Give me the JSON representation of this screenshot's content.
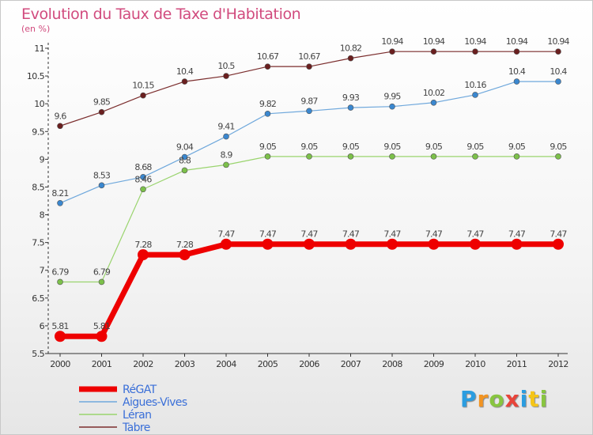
{
  "chart_data": {
    "type": "line",
    "title": "Evolution du Taux de Taxe d'Habitation",
    "subtitle": "(en %)",
    "x": [
      "2000",
      "2001",
      "2002",
      "2003",
      "2004",
      "2005",
      "2006",
      "2007",
      "2008",
      "2009",
      "2010",
      "2011",
      "2012"
    ],
    "ylim": [
      5.5,
      11
    ],
    "yticks": [
      "5.5",
      "6",
      "6.5",
      "7",
      "7.5",
      "8",
      "8.5",
      "9",
      "9.5",
      "10",
      "10.5",
      "11"
    ],
    "grid": false,
    "legend_position": "bottom-left",
    "series": [
      {
        "name": "RéGAT",
        "color": "#ee0000",
        "width": 7,
        "marker": 7,
        "values": [
          5.81,
          5.81,
          7.28,
          7.28,
          7.47,
          7.47,
          7.47,
          7.47,
          7.47,
          7.47,
          7.47,
          7.47,
          7.47
        ],
        "labels": [
          "5.81",
          "5.81",
          "7.28",
          "7.28",
          "7.47",
          "7.47",
          "7.47",
          "7.47",
          "7.47",
          "7.47",
          "7.47",
          "7.47",
          "7.47"
        ]
      },
      {
        "name": "Aigues-Vives",
        "color": "#6fa8dc",
        "marker_color": "#3a87cf",
        "width": 1.2,
        "marker": 3.5,
        "values": [
          8.21,
          8.53,
          8.68,
          9.04,
          9.41,
          9.82,
          9.87,
          9.93,
          9.95,
          10.02,
          10.16,
          10.4,
          10.4
        ],
        "labels": [
          "8.21",
          "8.53",
          "8.68",
          "9.04",
          "9.41",
          "9.82",
          "9.87",
          "9.93",
          "9.95",
          "10.02",
          "10.16",
          "10.4",
          "10.4"
        ]
      },
      {
        "name": "Léran",
        "color": "#9ad46e",
        "marker_color": "#7cc04a",
        "width": 1.2,
        "marker": 3.5,
        "values": [
          6.79,
          6.79,
          8.46,
          8.8,
          8.9,
          9.05,
          9.05,
          9.05,
          9.05,
          9.05,
          9.05,
          9.05,
          9.05
        ],
        "labels": [
          "6.79",
          "6.79",
          "8.46",
          "8.8",
          "8.9",
          "9.05",
          "9.05",
          "9.05",
          "9.05",
          "9.05",
          "9.05",
          "9.05",
          "9.05"
        ]
      },
      {
        "name": "Tabre",
        "color": "#7b2d2d",
        "marker_color": "#6a1f1f",
        "width": 1.2,
        "marker": 3.5,
        "values": [
          9.6,
          9.85,
          10.15,
          10.4,
          10.5,
          10.67,
          10.67,
          10.82,
          10.94,
          10.94,
          10.94,
          10.94,
          10.94
        ],
        "labels": [
          "9.6",
          "9.85",
          "10.15",
          "10.4",
          "10.5",
          "10.67",
          "10.67",
          "10.82",
          "10.94",
          "10.94",
          "10.94",
          "10.94",
          "10.94"
        ]
      }
    ]
  },
  "legend_text_color": "#3a6fd8",
  "logo_letters": [
    "P",
    "r",
    "o",
    "x",
    "i",
    "t",
    "i"
  ]
}
